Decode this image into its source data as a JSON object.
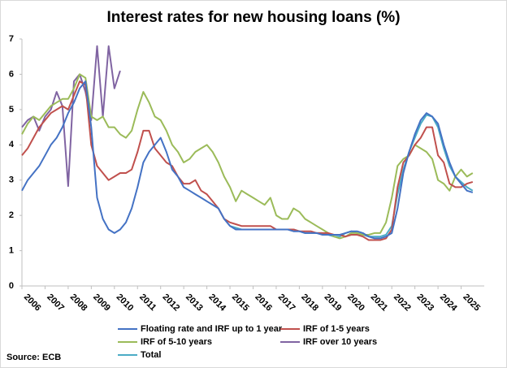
{
  "chart_data": {
    "type": "line",
    "title": "Interest rates for new housing loans (%)",
    "source": "Source:  ECB",
    "x": [
      2006,
      2006.25,
      2006.5,
      2006.75,
      2007,
      2007.25,
      2007.5,
      2007.75,
      2008,
      2008.25,
      2008.5,
      2008.75,
      2009,
      2009.25,
      2009.5,
      2009.75,
      2010,
      2010.25,
      2010.5,
      2010.75,
      2011,
      2011.25,
      2011.5,
      2011.75,
      2012,
      2012.25,
      2012.5,
      2012.75,
      2013,
      2013.25,
      2013.5,
      2013.75,
      2014,
      2014.25,
      2014.5,
      2014.75,
      2015,
      2015.25,
      2015.5,
      2015.75,
      2016,
      2016.25,
      2016.5,
      2016.75,
      2017,
      2017.25,
      2017.5,
      2017.75,
      2018,
      2018.25,
      2018.5,
      2018.75,
      2019,
      2019.25,
      2019.5,
      2019.75,
      2020,
      2020.25,
      2020.5,
      2020.75,
      2021,
      2021.25,
      2021.5,
      2021.75,
      2022,
      2022.25,
      2022.5,
      2022.75,
      2023,
      2023.25,
      2023.5,
      2023.75,
      2024,
      2024.25,
      2024.5,
      2024.75,
      2025,
      2025.25,
      2025.5
    ],
    "xlim": [
      2006,
      2026
    ],
    "xticks": [
      2006,
      2007,
      2008,
      2009,
      2010,
      2011,
      2012,
      2013,
      2014,
      2015,
      2016,
      2017,
      2018,
      2019,
      2020,
      2021,
      2022,
      2023,
      2024,
      2025
    ],
    "ylim": [
      0,
      7
    ],
    "yticks": [
      0,
      1,
      2,
      3,
      4,
      5,
      6,
      7
    ],
    "series": [
      {
        "name": "Floating rate and IRF up to 1 year",
        "color": "#4472c4",
        "values": [
          2.7,
          3.0,
          3.2,
          3.4,
          3.7,
          4.0,
          4.2,
          4.5,
          4.9,
          5.2,
          5.6,
          5.8,
          4.5,
          2.5,
          1.9,
          1.6,
          1.5,
          1.6,
          1.8,
          2.2,
          2.8,
          3.5,
          3.8,
          4.0,
          4.2,
          3.8,
          3.3,
          3.1,
          2.8,
          2.7,
          2.6,
          2.5,
          2.4,
          2.3,
          2.2,
          1.9,
          1.7,
          1.6,
          1.6,
          1.6,
          1.6,
          1.6,
          1.6,
          1.6,
          1.6,
          1.6,
          1.6,
          1.55,
          1.55,
          1.5,
          1.5,
          1.5,
          1.45,
          1.45,
          1.45,
          1.45,
          1.5,
          1.55,
          1.55,
          1.5,
          1.4,
          1.35,
          1.35,
          1.4,
          1.5,
          2.2,
          3.2,
          3.8,
          4.3,
          4.7,
          4.9,
          4.8,
          4.6,
          4.0,
          3.5,
          3.1,
          2.9,
          2.7,
          2.65
        ]
      },
      {
        "name": "IRF of 1-5 years",
        "color": "#c0504d",
        "values": [
          3.7,
          3.9,
          4.2,
          4.5,
          4.7,
          4.9,
          5.0,
          5.1,
          5.0,
          5.4,
          5.8,
          5.7,
          4.0,
          3.4,
          3.2,
          3.0,
          3.1,
          3.2,
          3.2,
          3.3,
          3.8,
          4.4,
          4.4,
          3.9,
          3.7,
          3.5,
          3.4,
          3.1,
          2.9,
          2.9,
          3.0,
          2.7,
          2.6,
          2.4,
          2.2,
          1.9,
          1.8,
          1.75,
          1.7,
          1.7,
          1.7,
          1.7,
          1.7,
          1.7,
          1.6,
          1.6,
          1.6,
          1.6,
          1.55,
          1.55,
          1.55,
          1.5,
          1.5,
          1.5,
          1.45,
          1.45,
          1.4,
          1.45,
          1.45,
          1.4,
          1.3,
          1.3,
          1.3,
          1.35,
          1.6,
          2.8,
          3.5,
          3.7,
          4.0,
          4.2,
          4.5,
          4.5,
          3.7,
          3.5,
          2.9,
          2.8,
          2.8,
          2.9,
          2.95
        ]
      },
      {
        "name": "IRF of 5-10 years",
        "color": "#9bbb59",
        "values": [
          4.3,
          4.6,
          4.8,
          4.7,
          4.9,
          5.1,
          5.2,
          5.3,
          5.3,
          5.6,
          6.0,
          5.9,
          4.8,
          4.7,
          4.8,
          4.5,
          4.5,
          4.3,
          4.2,
          4.4,
          5.0,
          5.5,
          5.2,
          4.8,
          4.7,
          4.4,
          4.0,
          3.8,
          3.5,
          3.6,
          3.8,
          3.9,
          4.0,
          3.8,
          3.5,
          3.1,
          2.8,
          2.4,
          2.7,
          2.6,
          2.5,
          2.4,
          2.3,
          2.5,
          2.0,
          1.9,
          1.9,
          2.2,
          2.1,
          1.9,
          1.8,
          1.7,
          1.6,
          1.5,
          1.4,
          1.35,
          1.4,
          1.5,
          1.5,
          1.45,
          1.45,
          1.5,
          1.5,
          1.8,
          2.5,
          3.4,
          3.6,
          3.7,
          4.0,
          3.9,
          3.8,
          3.6,
          3.0,
          2.9,
          2.7,
          3.1,
          3.3,
          3.1,
          3.2
        ]
      },
      {
        "name": "IRF over 10 years",
        "color": "#8064a2",
        "values": [
          4.5,
          4.7,
          4.8,
          4.4,
          4.8,
          5.0,
          5.5,
          5.1,
          2.83,
          5.8,
          6.0,
          5.5,
          4.7,
          6.8,
          4.8,
          6.8,
          5.6,
          6.1,
          null,
          null,
          null,
          null,
          null,
          null,
          null,
          null,
          null,
          null,
          null,
          null,
          null,
          null,
          null,
          null,
          null,
          null,
          null,
          null,
          null,
          null,
          null,
          null,
          null,
          null,
          null,
          null,
          null,
          null,
          null,
          null,
          null,
          null,
          null,
          null,
          null,
          null,
          null,
          null,
          null,
          null,
          null,
          null,
          null,
          null,
          null,
          null,
          null,
          null,
          null,
          null,
          null,
          null,
          null,
          null,
          null,
          null,
          null,
          null,
          null
        ]
      },
      {
        "name": "Total",
        "color": "#4bacc6",
        "values": [
          null,
          null,
          null,
          null,
          null,
          null,
          null,
          null,
          null,
          null,
          null,
          null,
          null,
          null,
          null,
          null,
          null,
          null,
          null,
          null,
          null,
          null,
          null,
          null,
          null,
          null,
          null,
          null,
          null,
          null,
          null,
          null,
          null,
          null,
          null,
          null,
          1.7,
          1.65,
          1.6,
          1.6,
          1.6,
          1.6,
          1.6,
          1.6,
          1.6,
          1.6,
          1.6,
          1.6,
          1.55,
          1.5,
          1.5,
          1.5,
          1.5,
          1.45,
          1.4,
          1.4,
          1.5,
          1.55,
          1.5,
          1.45,
          1.4,
          1.4,
          1.4,
          1.45,
          1.7,
          2.6,
          3.3,
          3.8,
          4.2,
          4.6,
          4.85,
          4.8,
          4.5,
          3.9,
          3.4,
          3.1,
          2.95,
          2.8,
          2.7
        ]
      }
    ]
  }
}
